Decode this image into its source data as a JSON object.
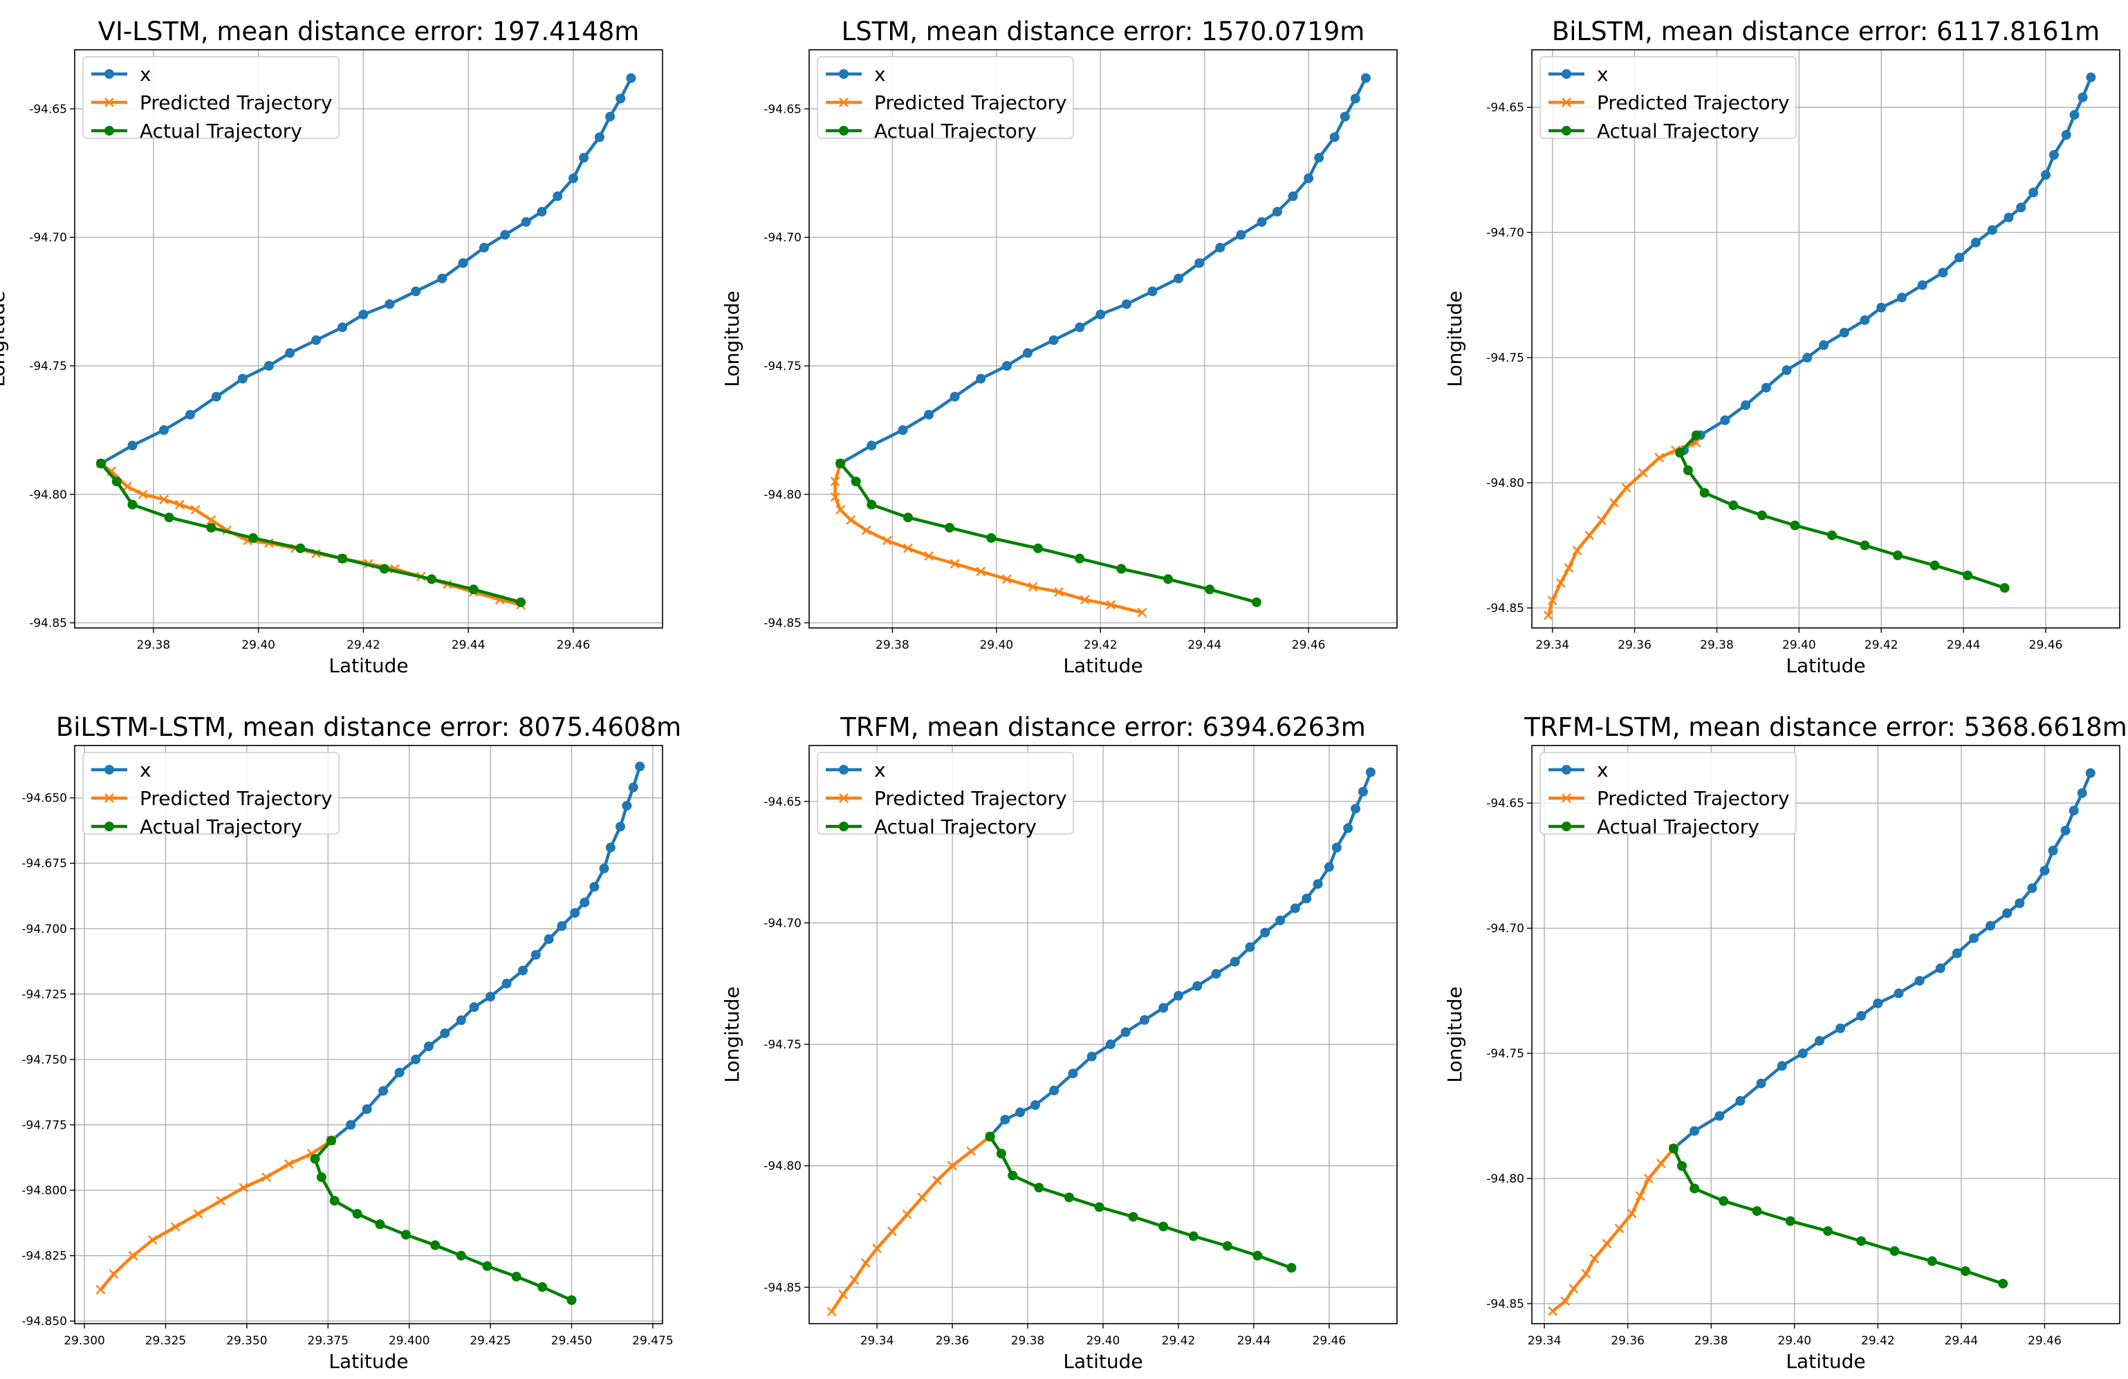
{
  "figure": {
    "colors": {
      "x": "#1f77b4",
      "predicted": "#ff7f0e",
      "actual": "#008000",
      "grid": "#b0b0b0"
    }
  },
  "chart_data": [
    {
      "type": "line",
      "title": "VI-LSTM, mean distance error: 197.4148m",
      "xlabel": "Latitude",
      "ylabel": "Longitude",
      "xlim": [
        29.365,
        29.477
      ],
      "ylim": [
        -94.852,
        -94.627
      ],
      "xticks": [
        29.38,
        29.4,
        29.42,
        29.44,
        29.46
      ],
      "yticks": [
        -94.65,
        -94.7,
        -94.75,
        -94.8,
        -94.85
      ],
      "tick_decimals": 2,
      "grid": true,
      "legend_position": "upper-left",
      "legend": [
        "x",
        "Predicted Trajectory",
        "Actual Trajectory"
      ],
      "series": [
        {
          "name": "x",
          "marker": "circle",
          "x": [
            29.471,
            29.469,
            29.467,
            29.465,
            29.462,
            29.46,
            29.457,
            29.454,
            29.451,
            29.447,
            29.443,
            29.439,
            29.435,
            29.43,
            29.425,
            29.42,
            29.416,
            29.411,
            29.406,
            29.402,
            29.397,
            29.392,
            29.387,
            29.382,
            29.376,
            29.37
          ],
          "y": [
            -94.638,
            -94.646,
            -94.653,
            -94.661,
            -94.669,
            -94.677,
            -94.684,
            -94.69,
            -94.694,
            -94.699,
            -94.704,
            -94.71,
            -94.716,
            -94.721,
            -94.726,
            -94.73,
            -94.735,
            -94.74,
            -94.745,
            -94.75,
            -94.755,
            -94.762,
            -94.769,
            -94.775,
            -94.781,
            -94.788
          ]
        },
        {
          "name": "Predicted Trajectory",
          "marker": "x",
          "x": [
            29.37,
            29.372,
            29.375,
            29.378,
            29.382,
            29.385,
            29.388,
            29.391,
            29.394,
            29.398,
            29.402,
            29.407,
            29.411,
            29.416,
            29.421,
            29.426,
            29.431,
            29.436,
            29.441,
            29.446,
            29.45
          ],
          "y": [
            -94.788,
            -94.791,
            -94.797,
            -94.8,
            -94.802,
            -94.804,
            -94.806,
            -94.81,
            -94.814,
            -94.818,
            -94.819,
            -94.821,
            -94.823,
            -94.825,
            -94.827,
            -94.829,
            -94.832,
            -94.835,
            -94.838,
            -94.841,
            -94.843
          ]
        },
        {
          "name": "Actual Trajectory",
          "marker": "circle",
          "x": [
            29.37,
            29.373,
            29.376,
            29.383,
            29.391,
            29.399,
            29.408,
            29.416,
            29.424,
            29.433,
            29.441,
            29.45
          ],
          "y": [
            -94.788,
            -94.795,
            -94.804,
            -94.809,
            -94.813,
            -94.817,
            -94.821,
            -94.825,
            -94.829,
            -94.833,
            -94.837,
            -94.842
          ]
        }
      ]
    },
    {
      "type": "line",
      "title": "LSTM, mean distance error: 1570.0719m",
      "xlabel": "Latitude",
      "ylabel": "Longitude",
      "xlim": [
        29.364,
        29.477
      ],
      "ylim": [
        -94.852,
        -94.627
      ],
      "xticks": [
        29.38,
        29.4,
        29.42,
        29.44,
        29.46
      ],
      "yticks": [
        -94.65,
        -94.7,
        -94.75,
        -94.8,
        -94.85
      ],
      "tick_decimals": 2,
      "grid": true,
      "legend_position": "upper-left",
      "legend": [
        "x",
        "Predicted Trajectory",
        "Actual Trajectory"
      ],
      "series": [
        {
          "name": "x",
          "marker": "circle",
          "x": [
            29.471,
            29.469,
            29.467,
            29.465,
            29.462,
            29.46,
            29.457,
            29.454,
            29.451,
            29.447,
            29.443,
            29.439,
            29.435,
            29.43,
            29.425,
            29.42,
            29.416,
            29.411,
            29.406,
            29.402,
            29.397,
            29.392,
            29.387,
            29.382,
            29.376,
            29.37
          ],
          "y": [
            -94.638,
            -94.646,
            -94.653,
            -94.661,
            -94.669,
            -94.677,
            -94.684,
            -94.69,
            -94.694,
            -94.699,
            -94.704,
            -94.71,
            -94.716,
            -94.721,
            -94.726,
            -94.73,
            -94.735,
            -94.74,
            -94.745,
            -94.75,
            -94.755,
            -94.762,
            -94.769,
            -94.775,
            -94.781,
            -94.788
          ]
        },
        {
          "name": "Predicted Trajectory",
          "marker": "x",
          "x": [
            29.37,
            29.369,
            29.369,
            29.37,
            29.372,
            29.375,
            29.379,
            29.383,
            29.387,
            29.392,
            29.397,
            29.402,
            29.407,
            29.412,
            29.417,
            29.422,
            29.428
          ],
          "y": [
            -94.788,
            -94.795,
            -94.801,
            -94.806,
            -94.81,
            -94.814,
            -94.818,
            -94.821,
            -94.824,
            -94.827,
            -94.83,
            -94.833,
            -94.836,
            -94.838,
            -94.841,
            -94.843,
            -94.846
          ]
        },
        {
          "name": "Actual Trajectory",
          "marker": "circle",
          "x": [
            29.37,
            29.373,
            29.376,
            29.383,
            29.391,
            29.399,
            29.408,
            29.416,
            29.424,
            29.433,
            29.441,
            29.45
          ],
          "y": [
            -94.788,
            -94.795,
            -94.804,
            -94.809,
            -94.813,
            -94.817,
            -94.821,
            -94.825,
            -94.829,
            -94.833,
            -94.837,
            -94.842
          ]
        }
      ]
    },
    {
      "type": "line",
      "title": "BiLSTM, mean distance error: 6117.8161m",
      "xlabel": "Latitude",
      "ylabel": "Longitude",
      "xlim": [
        29.335,
        29.478
      ],
      "ylim": [
        -94.858,
        -94.627
      ],
      "xticks": [
        29.34,
        29.36,
        29.38,
        29.4,
        29.42,
        29.44,
        29.46
      ],
      "yticks": [
        -94.65,
        -94.7,
        -94.75,
        -94.8,
        -94.85
      ],
      "tick_decimals": 2,
      "grid": true,
      "legend_position": "upper-left",
      "legend": [
        "x",
        "Predicted Trajectory",
        "Actual Trajectory"
      ],
      "series": [
        {
          "name": "x",
          "marker": "circle",
          "x": [
            29.471,
            29.469,
            29.467,
            29.465,
            29.462,
            29.46,
            29.457,
            29.454,
            29.451,
            29.447,
            29.443,
            29.439,
            29.435,
            29.43,
            29.425,
            29.42,
            29.416,
            29.411,
            29.406,
            29.402,
            29.397,
            29.392,
            29.387,
            29.382,
            29.376,
            29.372
          ],
          "y": [
            -94.638,
            -94.646,
            -94.653,
            -94.661,
            -94.669,
            -94.677,
            -94.684,
            -94.69,
            -94.694,
            -94.699,
            -94.704,
            -94.71,
            -94.716,
            -94.721,
            -94.726,
            -94.73,
            -94.735,
            -94.74,
            -94.745,
            -94.75,
            -94.755,
            -94.762,
            -94.769,
            -94.775,
            -94.781,
            -94.787
          ]
        },
        {
          "name": "Predicted Trajectory",
          "marker": "x",
          "x": [
            29.375,
            29.37,
            29.366,
            29.362,
            29.358,
            29.355,
            29.352,
            29.349,
            29.346,
            29.344,
            29.342,
            29.34,
            29.339
          ],
          "y": [
            -94.784,
            -94.787,
            -94.79,
            -94.796,
            -94.802,
            -94.808,
            -94.815,
            -94.821,
            -94.827,
            -94.834,
            -94.84,
            -94.847,
            -94.853
          ]
        },
        {
          "name": "Actual Trajectory",
          "marker": "circle",
          "x": [
            29.375,
            29.371,
            29.373,
            29.377,
            29.384,
            29.391,
            29.399,
            29.408,
            29.416,
            29.424,
            29.433,
            29.441,
            29.45
          ],
          "y": [
            -94.781,
            -94.788,
            -94.795,
            -94.804,
            -94.809,
            -94.813,
            -94.817,
            -94.821,
            -94.825,
            -94.829,
            -94.833,
            -94.837,
            -94.842
          ]
        }
      ]
    },
    {
      "type": "line",
      "title": "BiLSTM-LSTM, mean distance error: 8075.4608m",
      "xlabel": "Latitude",
      "ylabel": "Longitude",
      "xlim": [
        29.297,
        29.478
      ],
      "ylim": [
        -94.851,
        -94.63
      ],
      "xticks": [
        29.3,
        29.325,
        29.35,
        29.375,
        29.4,
        29.425,
        29.45,
        29.475
      ],
      "yticks": [
        -94.65,
        -94.675,
        -94.7,
        -94.725,
        -94.75,
        -94.775,
        -94.8,
        -94.825,
        -94.85
      ],
      "tick_decimals": 3,
      "grid": true,
      "legend_position": "upper-left",
      "legend": [
        "x",
        "Predicted Trajectory",
        "Actual Trajectory"
      ],
      "series": [
        {
          "name": "x",
          "marker": "circle",
          "x": [
            29.471,
            29.469,
            29.467,
            29.465,
            29.462,
            29.46,
            29.457,
            29.454,
            29.451,
            29.447,
            29.443,
            29.439,
            29.435,
            29.43,
            29.425,
            29.42,
            29.416,
            29.411,
            29.406,
            29.402,
            29.397,
            29.392,
            29.387,
            29.382,
            29.376
          ],
          "y": [
            -94.638,
            -94.646,
            -94.653,
            -94.661,
            -94.669,
            -94.677,
            -94.684,
            -94.69,
            -94.694,
            -94.699,
            -94.704,
            -94.71,
            -94.716,
            -94.721,
            -94.726,
            -94.73,
            -94.735,
            -94.74,
            -94.745,
            -94.75,
            -94.755,
            -94.762,
            -94.769,
            -94.775,
            -94.781
          ]
        },
        {
          "name": "Predicted Trajectory",
          "marker": "x",
          "x": [
            29.376,
            29.37,
            29.363,
            29.356,
            29.349,
            29.342,
            29.335,
            29.328,
            29.321,
            29.315,
            29.309,
            29.305
          ],
          "y": [
            -94.781,
            -94.786,
            -94.79,
            -94.795,
            -94.799,
            -94.804,
            -94.809,
            -94.814,
            -94.819,
            -94.825,
            -94.832,
            -94.838
          ]
        },
        {
          "name": "Actual Trajectory",
          "marker": "circle",
          "x": [
            29.376,
            29.371,
            29.373,
            29.377,
            29.384,
            29.391,
            29.399,
            29.408,
            29.416,
            29.424,
            29.433,
            29.441,
            29.45
          ],
          "y": [
            -94.781,
            -94.788,
            -94.795,
            -94.804,
            -94.809,
            -94.813,
            -94.817,
            -94.821,
            -94.825,
            -94.829,
            -94.833,
            -94.837,
            -94.842
          ]
        }
      ]
    },
    {
      "type": "line",
      "title": "TRFM, mean distance error: 6394.6263m",
      "xlabel": "Latitude",
      "ylabel": "Longitude",
      "xlim": [
        29.322,
        29.478
      ],
      "ylim": [
        -94.865,
        -94.627
      ],
      "xticks": [
        29.34,
        29.36,
        29.38,
        29.4,
        29.42,
        29.44,
        29.46
      ],
      "yticks": [
        -94.65,
        -94.7,
        -94.75,
        -94.8,
        -94.85
      ],
      "tick_decimals": 2,
      "grid": true,
      "legend_position": "upper-left",
      "legend": [
        "x",
        "Predicted Trajectory",
        "Actual Trajectory"
      ],
      "series": [
        {
          "name": "x",
          "marker": "circle",
          "x": [
            29.471,
            29.469,
            29.467,
            29.465,
            29.462,
            29.46,
            29.457,
            29.454,
            29.451,
            29.447,
            29.443,
            29.439,
            29.435,
            29.43,
            29.425,
            29.42,
            29.416,
            29.411,
            29.406,
            29.402,
            29.397,
            29.392,
            29.387,
            29.382,
            29.378,
            29.374,
            29.37
          ],
          "y": [
            -94.638,
            -94.646,
            -94.653,
            -94.661,
            -94.669,
            -94.677,
            -94.684,
            -94.69,
            -94.694,
            -94.699,
            -94.704,
            -94.71,
            -94.716,
            -94.721,
            -94.726,
            -94.73,
            -94.735,
            -94.74,
            -94.745,
            -94.75,
            -94.755,
            -94.762,
            -94.769,
            -94.775,
            -94.778,
            -94.781,
            -94.788
          ]
        },
        {
          "name": "Predicted Trajectory",
          "marker": "x",
          "x": [
            29.37,
            29.365,
            29.36,
            29.356,
            29.352,
            29.348,
            29.344,
            29.34,
            29.337,
            29.334,
            29.331,
            29.328
          ],
          "y": [
            -94.788,
            -94.794,
            -94.8,
            -94.806,
            -94.813,
            -94.82,
            -94.827,
            -94.834,
            -94.84,
            -94.847,
            -94.853,
            -94.86
          ]
        },
        {
          "name": "Actual Trajectory",
          "marker": "circle",
          "x": [
            29.37,
            29.373,
            29.376,
            29.383,
            29.391,
            29.399,
            29.408,
            29.416,
            29.424,
            29.433,
            29.441,
            29.45
          ],
          "y": [
            -94.788,
            -94.795,
            -94.804,
            -94.809,
            -94.813,
            -94.817,
            -94.821,
            -94.825,
            -94.829,
            -94.833,
            -94.837,
            -94.842
          ]
        }
      ]
    },
    {
      "type": "line",
      "title": "TRFM-LSTM, mean distance error: 5368.6618m",
      "xlabel": "Latitude",
      "ylabel": "Longitude",
      "xlim": [
        29.337,
        29.478
      ],
      "ylim": [
        -94.858,
        -94.627
      ],
      "xticks": [
        29.34,
        29.36,
        29.38,
        29.4,
        29.42,
        29.44,
        29.46
      ],
      "yticks": [
        -94.65,
        -94.7,
        -94.75,
        -94.8,
        -94.85
      ],
      "tick_decimals": 2,
      "grid": true,
      "legend_position": "upper-left",
      "legend": [
        "x",
        "Predicted Trajectory",
        "Actual Trajectory"
      ],
      "series": [
        {
          "name": "x",
          "marker": "circle",
          "x": [
            29.471,
            29.469,
            29.467,
            29.465,
            29.462,
            29.46,
            29.457,
            29.454,
            29.451,
            29.447,
            29.443,
            29.439,
            29.435,
            29.43,
            29.425,
            29.42,
            29.416,
            29.411,
            29.406,
            29.402,
            29.397,
            29.392,
            29.387,
            29.382,
            29.376,
            29.371
          ],
          "y": [
            -94.638,
            -94.646,
            -94.653,
            -94.661,
            -94.669,
            -94.677,
            -94.684,
            -94.69,
            -94.694,
            -94.699,
            -94.704,
            -94.71,
            -94.716,
            -94.721,
            -94.726,
            -94.73,
            -94.735,
            -94.74,
            -94.745,
            -94.75,
            -94.755,
            -94.762,
            -94.769,
            -94.775,
            -94.781,
            -94.788
          ]
        },
        {
          "name": "Predicted Trajectory",
          "marker": "x",
          "x": [
            29.371,
            29.368,
            29.365,
            29.363,
            29.361,
            29.358,
            29.355,
            29.352,
            29.35,
            29.347,
            29.345,
            29.342
          ],
          "y": [
            -94.788,
            -94.794,
            -94.8,
            -94.807,
            -94.814,
            -94.82,
            -94.826,
            -94.832,
            -94.838,
            -94.844,
            -94.849,
            -94.853
          ]
        },
        {
          "name": "Actual Trajectory",
          "marker": "circle",
          "x": [
            29.371,
            29.373,
            29.376,
            29.383,
            29.391,
            29.399,
            29.408,
            29.416,
            29.424,
            29.433,
            29.441,
            29.45
          ],
          "y": [
            -94.788,
            -94.795,
            -94.804,
            -94.809,
            -94.813,
            -94.817,
            -94.821,
            -94.825,
            -94.829,
            -94.833,
            -94.837,
            -94.842
          ]
        }
      ]
    }
  ]
}
